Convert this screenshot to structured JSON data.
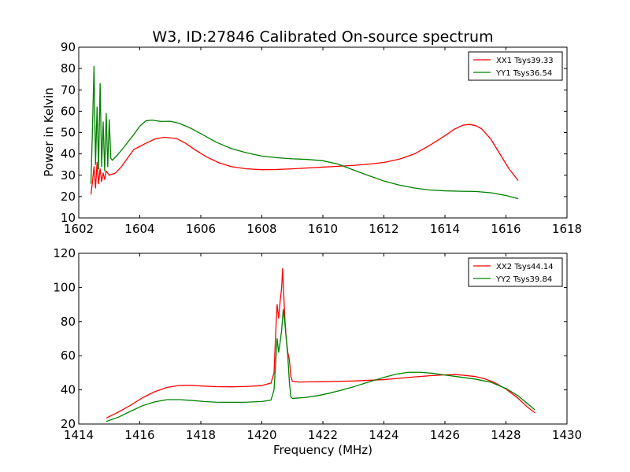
{
  "chart_data": [
    {
      "type": "line",
      "title": "W3, ID:27846 Calibrated On-source spectrum",
      "xlabel": "",
      "ylabel": "Power in Kelvin",
      "xlim": [
        1602,
        1618
      ],
      "ylim": [
        10,
        90
      ],
      "xticks": [
        "1602",
        "1604",
        "1606",
        "1608",
        "1610",
        "1612",
        "1614",
        "1616",
        "1618"
      ],
      "yticks": [
        "10",
        "20",
        "30",
        "40",
        "50",
        "60",
        "70",
        "80",
        "90"
      ],
      "grid": false,
      "legend_position": "top-right",
      "series": [
        {
          "name": "XX1 Tsys39.33",
          "color": "#ff0000",
          "points": [
            [
              1602.4,
              21
            ],
            [
              1602.45,
              27
            ],
            [
              1602.5,
              34
            ],
            [
              1602.55,
              24
            ],
            [
              1602.6,
              36
            ],
            [
              1602.65,
              26
            ],
            [
              1602.7,
              33
            ],
            [
              1602.75,
              27
            ],
            [
              1602.8,
              31
            ],
            [
              1602.85,
              28
            ],
            [
              1602.9,
              32
            ],
            [
              1603.0,
              30
            ],
            [
              1603.2,
              31
            ],
            [
              1603.4,
              34
            ],
            [
              1603.6,
              38
            ],
            [
              1603.8,
              42
            ],
            [
              1604.0,
              43.5
            ],
            [
              1604.2,
              45
            ],
            [
              1604.5,
              47
            ],
            [
              1604.8,
              47.8
            ],
            [
              1605.2,
              47.2
            ],
            [
              1605.5,
              45
            ],
            [
              1605.8,
              42
            ],
            [
              1606.2,
              38.5
            ],
            [
              1606.6,
              35.8
            ],
            [
              1607.0,
              34
            ],
            [
              1607.5,
              33
            ],
            [
              1608.0,
              32.6
            ],
            [
              1608.5,
              32.7
            ],
            [
              1609.0,
              33
            ],
            [
              1609.5,
              33.4
            ],
            [
              1610.0,
              33.8
            ],
            [
              1610.5,
              34.2
            ],
            [
              1611.0,
              34.6
            ],
            [
              1611.5,
              35.2
            ],
            [
              1612.0,
              36
            ],
            [
              1612.5,
              37.5
            ],
            [
              1613.0,
              40
            ],
            [
              1613.5,
              44
            ],
            [
              1614.0,
              48.5
            ],
            [
              1614.3,
              51.5
            ],
            [
              1614.6,
              53.5
            ],
            [
              1614.8,
              53.8
            ],
            [
              1615.0,
              53.3
            ],
            [
              1615.2,
              51.8
            ],
            [
              1615.5,
              47
            ],
            [
              1615.8,
              40
            ],
            [
              1616.1,
              33
            ],
            [
              1616.4,
              27.5
            ]
          ]
        },
        {
          "name": "YY1 Tsys36.54",
          "color": "#008000",
          "points": [
            [
              1602.4,
              26
            ],
            [
              1602.45,
              52
            ],
            [
              1602.5,
              81
            ],
            [
              1602.55,
              35
            ],
            [
              1602.6,
              62
            ],
            [
              1602.65,
              33
            ],
            [
              1602.7,
              73
            ],
            [
              1602.75,
              34
            ],
            [
              1602.8,
              55
            ],
            [
              1602.85,
              32
            ],
            [
              1602.9,
              59
            ],
            [
              1602.95,
              34
            ],
            [
              1603.0,
              56
            ],
            [
              1603.05,
              38
            ],
            [
              1603.1,
              37
            ],
            [
              1603.3,
              40
            ],
            [
              1603.5,
              43.5
            ],
            [
              1603.8,
              49
            ],
            [
              1604.0,
              53
            ],
            [
              1604.2,
              55.5
            ],
            [
              1604.4,
              55.8
            ],
            [
              1604.7,
              55.2
            ],
            [
              1605.0,
              55.3
            ],
            [
              1605.3,
              54.3
            ],
            [
              1605.6,
              52.5
            ],
            [
              1606.0,
              49.5
            ],
            [
              1606.5,
              45.5
            ],
            [
              1607.0,
              42.5
            ],
            [
              1607.5,
              40.5
            ],
            [
              1608.0,
              39
            ],
            [
              1608.5,
              38.2
            ],
            [
              1609.0,
              37.7
            ],
            [
              1609.5,
              37.4
            ],
            [
              1610.0,
              36.8
            ],
            [
              1610.5,
              35.2
            ],
            [
              1611.0,
              32.5
            ],
            [
              1611.5,
              29.8
            ],
            [
              1612.0,
              27.3
            ],
            [
              1612.5,
              25.4
            ],
            [
              1613.0,
              24
            ],
            [
              1613.5,
              23.1
            ],
            [
              1614.0,
              22.7
            ],
            [
              1614.5,
              22.5
            ],
            [
              1615.0,
              22.4
            ],
            [
              1615.5,
              21.8
            ],
            [
              1616.0,
              20.5
            ],
            [
              1616.4,
              19
            ]
          ]
        }
      ]
    },
    {
      "type": "line",
      "title": "",
      "xlabel": "Frequency (MHz)",
      "ylabel": "",
      "xlim": [
        1414,
        1430
      ],
      "ylim": [
        20,
        120
      ],
      "xticks": [
        "1414",
        "1416",
        "1418",
        "1420",
        "1422",
        "1424",
        "1426",
        "1428",
        "1430"
      ],
      "yticks": [
        "20",
        "40",
        "60",
        "80",
        "100",
        "120"
      ],
      "grid": false,
      "legend_position": "top-right",
      "series": [
        {
          "name": "XX2 Tsys44.14",
          "color": "#ff0000",
          "points": [
            [
              1414.9,
              23.5
            ],
            [
              1415.3,
              27
            ],
            [
              1415.7,
              31
            ],
            [
              1416.1,
              35.5
            ],
            [
              1416.5,
              39
            ],
            [
              1416.9,
              41.5
            ],
            [
              1417.3,
              42.6
            ],
            [
              1417.7,
              42.6
            ],
            [
              1418.1,
              42.2
            ],
            [
              1418.5,
              41.9
            ],
            [
              1419.0,
              41.8
            ],
            [
              1419.5,
              42
            ],
            [
              1420.0,
              42.5
            ],
            [
              1420.3,
              44
            ],
            [
              1420.4,
              50
            ],
            [
              1420.45,
              72
            ],
            [
              1420.5,
              90
            ],
            [
              1420.55,
              82
            ],
            [
              1420.6,
              92
            ],
            [
              1420.65,
              100
            ],
            [
              1420.68,
              111
            ],
            [
              1420.72,
              95
            ],
            [
              1420.76,
              80
            ],
            [
              1420.8,
              70
            ],
            [
              1420.85,
              62
            ],
            [
              1420.9,
              58
            ],
            [
              1420.95,
              48
            ],
            [
              1421.0,
              45
            ],
            [
              1421.2,
              44.6
            ],
            [
              1421.6,
              44.7
            ],
            [
              1422.0,
              44.8
            ],
            [
              1422.5,
              45
            ],
            [
              1423.0,
              45.2
            ],
            [
              1423.5,
              45.6
            ],
            [
              1424.0,
              46
            ],
            [
              1424.5,
              46.8
            ],
            [
              1425.0,
              47.6
            ],
            [
              1425.5,
              48.3
            ],
            [
              1426.0,
              48.8
            ],
            [
              1426.3,
              49
            ],
            [
              1426.6,
              48.6
            ],
            [
              1427.0,
              47.8
            ],
            [
              1427.3,
              46.5
            ],
            [
              1427.6,
              44.5
            ],
            [
              1428.0,
              40.5
            ],
            [
              1428.4,
              35
            ],
            [
              1428.7,
              30
            ],
            [
              1428.95,
              26.5
            ]
          ]
        },
        {
          "name": "YY2 Tsys39.84",
          "color": "#008000",
          "points": [
            [
              1414.9,
              21.5
            ],
            [
              1415.3,
              24
            ],
            [
              1415.7,
              27.5
            ],
            [
              1416.1,
              30.8
            ],
            [
              1416.5,
              33
            ],
            [
              1416.9,
              34.3
            ],
            [
              1417.3,
              34.3
            ],
            [
              1417.7,
              33.8
            ],
            [
              1418.1,
              33.2
            ],
            [
              1418.5,
              32.8
            ],
            [
              1419.0,
              32.7
            ],
            [
              1419.5,
              32.8
            ],
            [
              1420.0,
              33.2
            ],
            [
              1420.3,
              34
            ],
            [
              1420.4,
              40
            ],
            [
              1420.45,
              55
            ],
            [
              1420.5,
              70
            ],
            [
              1420.55,
              62
            ],
            [
              1420.6,
              68
            ],
            [
              1420.65,
              75
            ],
            [
              1420.7,
              87
            ],
            [
              1420.75,
              80
            ],
            [
              1420.8,
              70
            ],
            [
              1420.85,
              60
            ],
            [
              1420.9,
              45
            ],
            [
              1420.95,
              36
            ],
            [
              1421.0,
              35
            ],
            [
              1421.4,
              35.5
            ],
            [
              1421.8,
              36.5
            ],
            [
              1422.2,
              38
            ],
            [
              1422.6,
              39.8
            ],
            [
              1423.0,
              41.8
            ],
            [
              1423.5,
              44.6
            ],
            [
              1424.0,
              47.3
            ],
            [
              1424.4,
              49.2
            ],
            [
              1424.8,
              50.3
            ],
            [
              1425.2,
              50.3
            ],
            [
              1425.6,
              49.7
            ],
            [
              1426.0,
              48.7
            ],
            [
              1426.5,
              47.5
            ],
            [
              1427.0,
              46.3
            ],
            [
              1427.5,
              44.5
            ],
            [
              1428.0,
              40.8
            ],
            [
              1428.4,
              36.5
            ],
            [
              1428.95,
              28.3
            ]
          ]
        }
      ]
    }
  ]
}
